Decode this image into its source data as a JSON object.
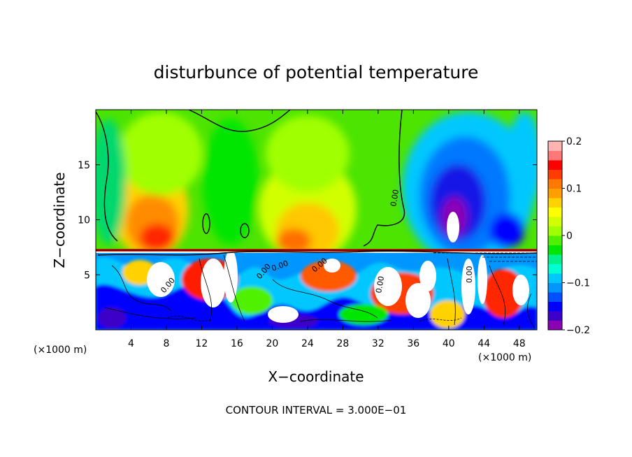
{
  "chart_data": {
    "type": "heatmap",
    "title": "disturbunce of potential temperature",
    "xlabel": "X−coordinate",
    "ylabel": "Z−coordinate",
    "x_unit_left": "(×1000 m)",
    "x_unit_right": "(×1000 m)",
    "footer": "CONTOUR INTERVAL = 3.000E−01",
    "xlim": [
      0,
      50
    ],
    "ylim": [
      0,
      20
    ],
    "x_ticks": [
      4,
      8,
      12,
      16,
      20,
      24,
      28,
      32,
      36,
      40,
      44,
      48
    ],
    "y_ticks": [
      5,
      10,
      15
    ],
    "colorbar": {
      "min": -0.2,
      "max": 0.2,
      "ticks": [
        {
          "value": 0.2,
          "label": "0.2"
        },
        {
          "value": 0.1,
          "label": "0.1"
        },
        {
          "value": 0.0,
          "label": "0"
        },
        {
          "value": -0.1,
          "label": "−0.1"
        },
        {
          "value": -0.2,
          "label": "−0.2"
        }
      ],
      "colors": [
        "#8c00b4",
        "#3c00c8",
        "#0000ff",
        "#0050ff",
        "#0096ff",
        "#00c8ff",
        "#00ffd2",
        "#00f08c",
        "#00e600",
        "#50f000",
        "#a0ff00",
        "#d2ff00",
        "#ffff00",
        "#ffd200",
        "#ffa000",
        "#ff7800",
        "#ff3c00",
        "#ff0000",
        "#ff7878",
        "#ffb4b4"
      ]
    },
    "contour_interval": 0.3,
    "contour_labels": [
      "0.00",
      "0.00",
      "0.00",
      "0.00",
      "0.00",
      "0.00",
      "0.00"
    ],
    "grid": false
  }
}
